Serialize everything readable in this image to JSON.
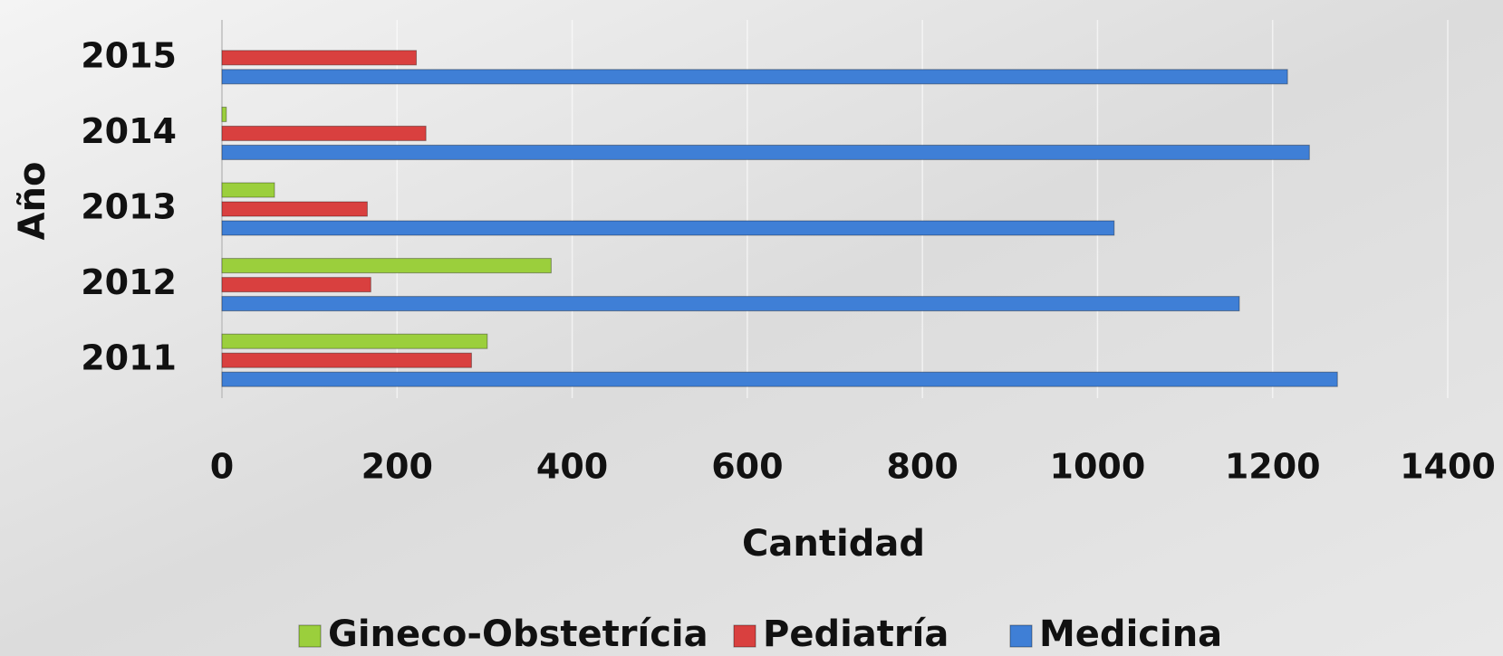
{
  "chart_data": {
    "type": "bar",
    "orientation": "horizontal",
    "x_label": "Cantidad",
    "y_label": "Año",
    "categories": [
      "2011",
      "2012",
      "2013",
      "2014",
      "2015"
    ],
    "series": [
      {
        "name": "Gineco-Obstetrícia",
        "color": "#9bcf3c",
        "values": [
          303,
          376,
          60,
          5,
          0
        ]
      },
      {
        "name": "Pediatría",
        "color": "#d9403f",
        "values": [
          285,
          170,
          166,
          233,
          222
        ]
      },
      {
        "name": "Medicina",
        "color": "#3f7fd6",
        "values": [
          1274,
          1162,
          1019,
          1242,
          1217
        ]
      }
    ],
    "xlim": [
      0,
      1400
    ],
    "xticks": [
      0,
      200,
      400,
      600,
      800,
      1000,
      1200,
      1400
    ],
    "grid": true,
    "legend": "bottom"
  }
}
